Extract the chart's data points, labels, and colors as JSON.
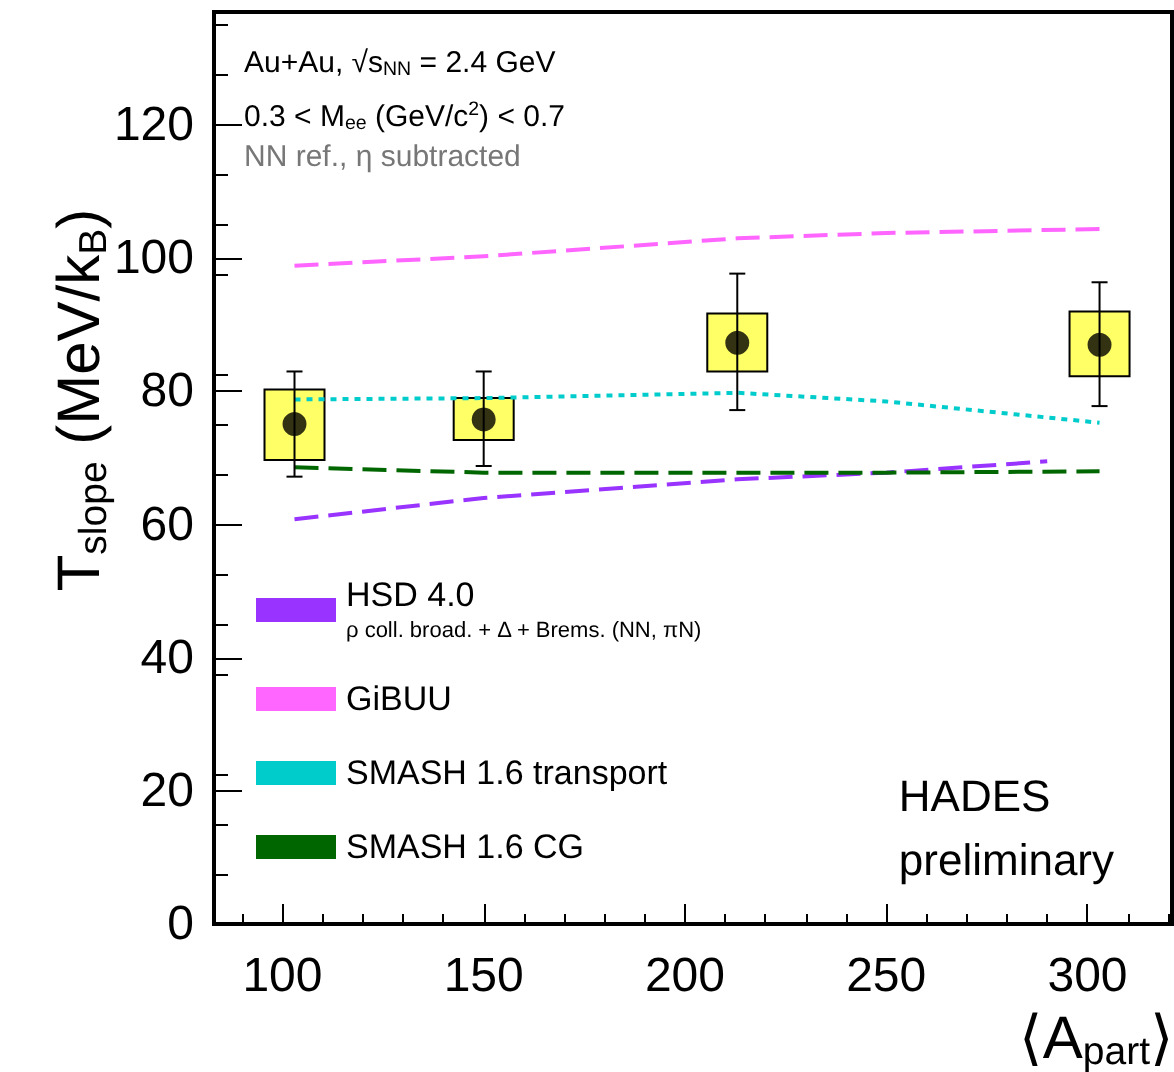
{
  "chart_data": {
    "type": "scatter",
    "ylabel": "T$_{slope}$ (MeV/k$_{B}$)",
    "xlabel": "⟨A$_{part}$⟩",
    "xlim": [
      83,
      321
    ],
    "xticks": [
      100,
      150,
      200,
      250,
      300
    ],
    "ylim": [
      0,
      137
    ],
    "yticks": [
      0,
      20,
      40,
      60,
      80,
      100,
      120
    ],
    "grid": false,
    "legend": "bottom left",
    "annotations": [
      "Au+Au, √s$_{NN}$ = 2.4 GeV",
      "0.3 < M$_{ee}$ (GeV/c$^{2}$) < 0.7",
      "NN ref., η subtracted",
      "HADES preliminary"
    ],
    "series": [
      {
        "type": "bar",
        "color": "#ffff66",
        "x": [
          103,
          150,
          213,
          303
        ],
        "base": [
          69.7,
          72.7,
          83,
          82.3
        ],
        "values": [
          10.6,
          6.3,
          8.7,
          9.7
        ]
      },
      {
        "type": "line",
        "name": "HSD 4.0\nρ coll. broad. + Δ + Brems. (NN, πN)",
        "color": "#9933ff",
        "line_style": "dashed",
        "marker": "none",
        "x": [
          103,
          150,
          213,
          250,
          290
        ],
        "values": [
          60.8,
          64,
          66.8,
          67.8,
          69.5
        ]
      },
      {
        "type": "line",
        "name": "GiBUU",
        "color": "#ff66ff",
        "line_style": "dashed",
        "marker": "none",
        "x": [
          103,
          150,
          213,
          250,
          303
        ],
        "values": [
          98.9,
          100.3,
          103,
          103.8,
          104.4
        ]
      },
      {
        "type": "line",
        "name": "SMASH 1.6 transport",
        "color": "#00cccc",
        "line_style": "dotted",
        "marker": "none",
        "x": [
          103,
          150,
          213,
          250,
          303
        ],
        "values": [
          78.8,
          79,
          79.8,
          78.5,
          75.3
        ]
      },
      {
        "type": "line",
        "name": "SMASH 1.6 CG",
        "color": "#006600",
        "line_style": "dashed",
        "marker": "none",
        "x": [
          103,
          150,
          213,
          250,
          303
        ],
        "values": [
          68.6,
          67.8,
          67.8,
          67.8,
          68
        ]
      },
      {
        "color": "#000000",
        "marker": "circle",
        "x": [
          103,
          150,
          213,
          303
        ],
        "values": [
          75.1,
          75.8,
          87.3,
          87
        ],
        "errors": [
          [
            67.2,
            83
          ],
          [
            68.8,
            83
          ],
          [
            77.2,
            97.7
          ],
          [
            77.8,
            96.4
          ]
        ]
      }
    ]
  }
}
